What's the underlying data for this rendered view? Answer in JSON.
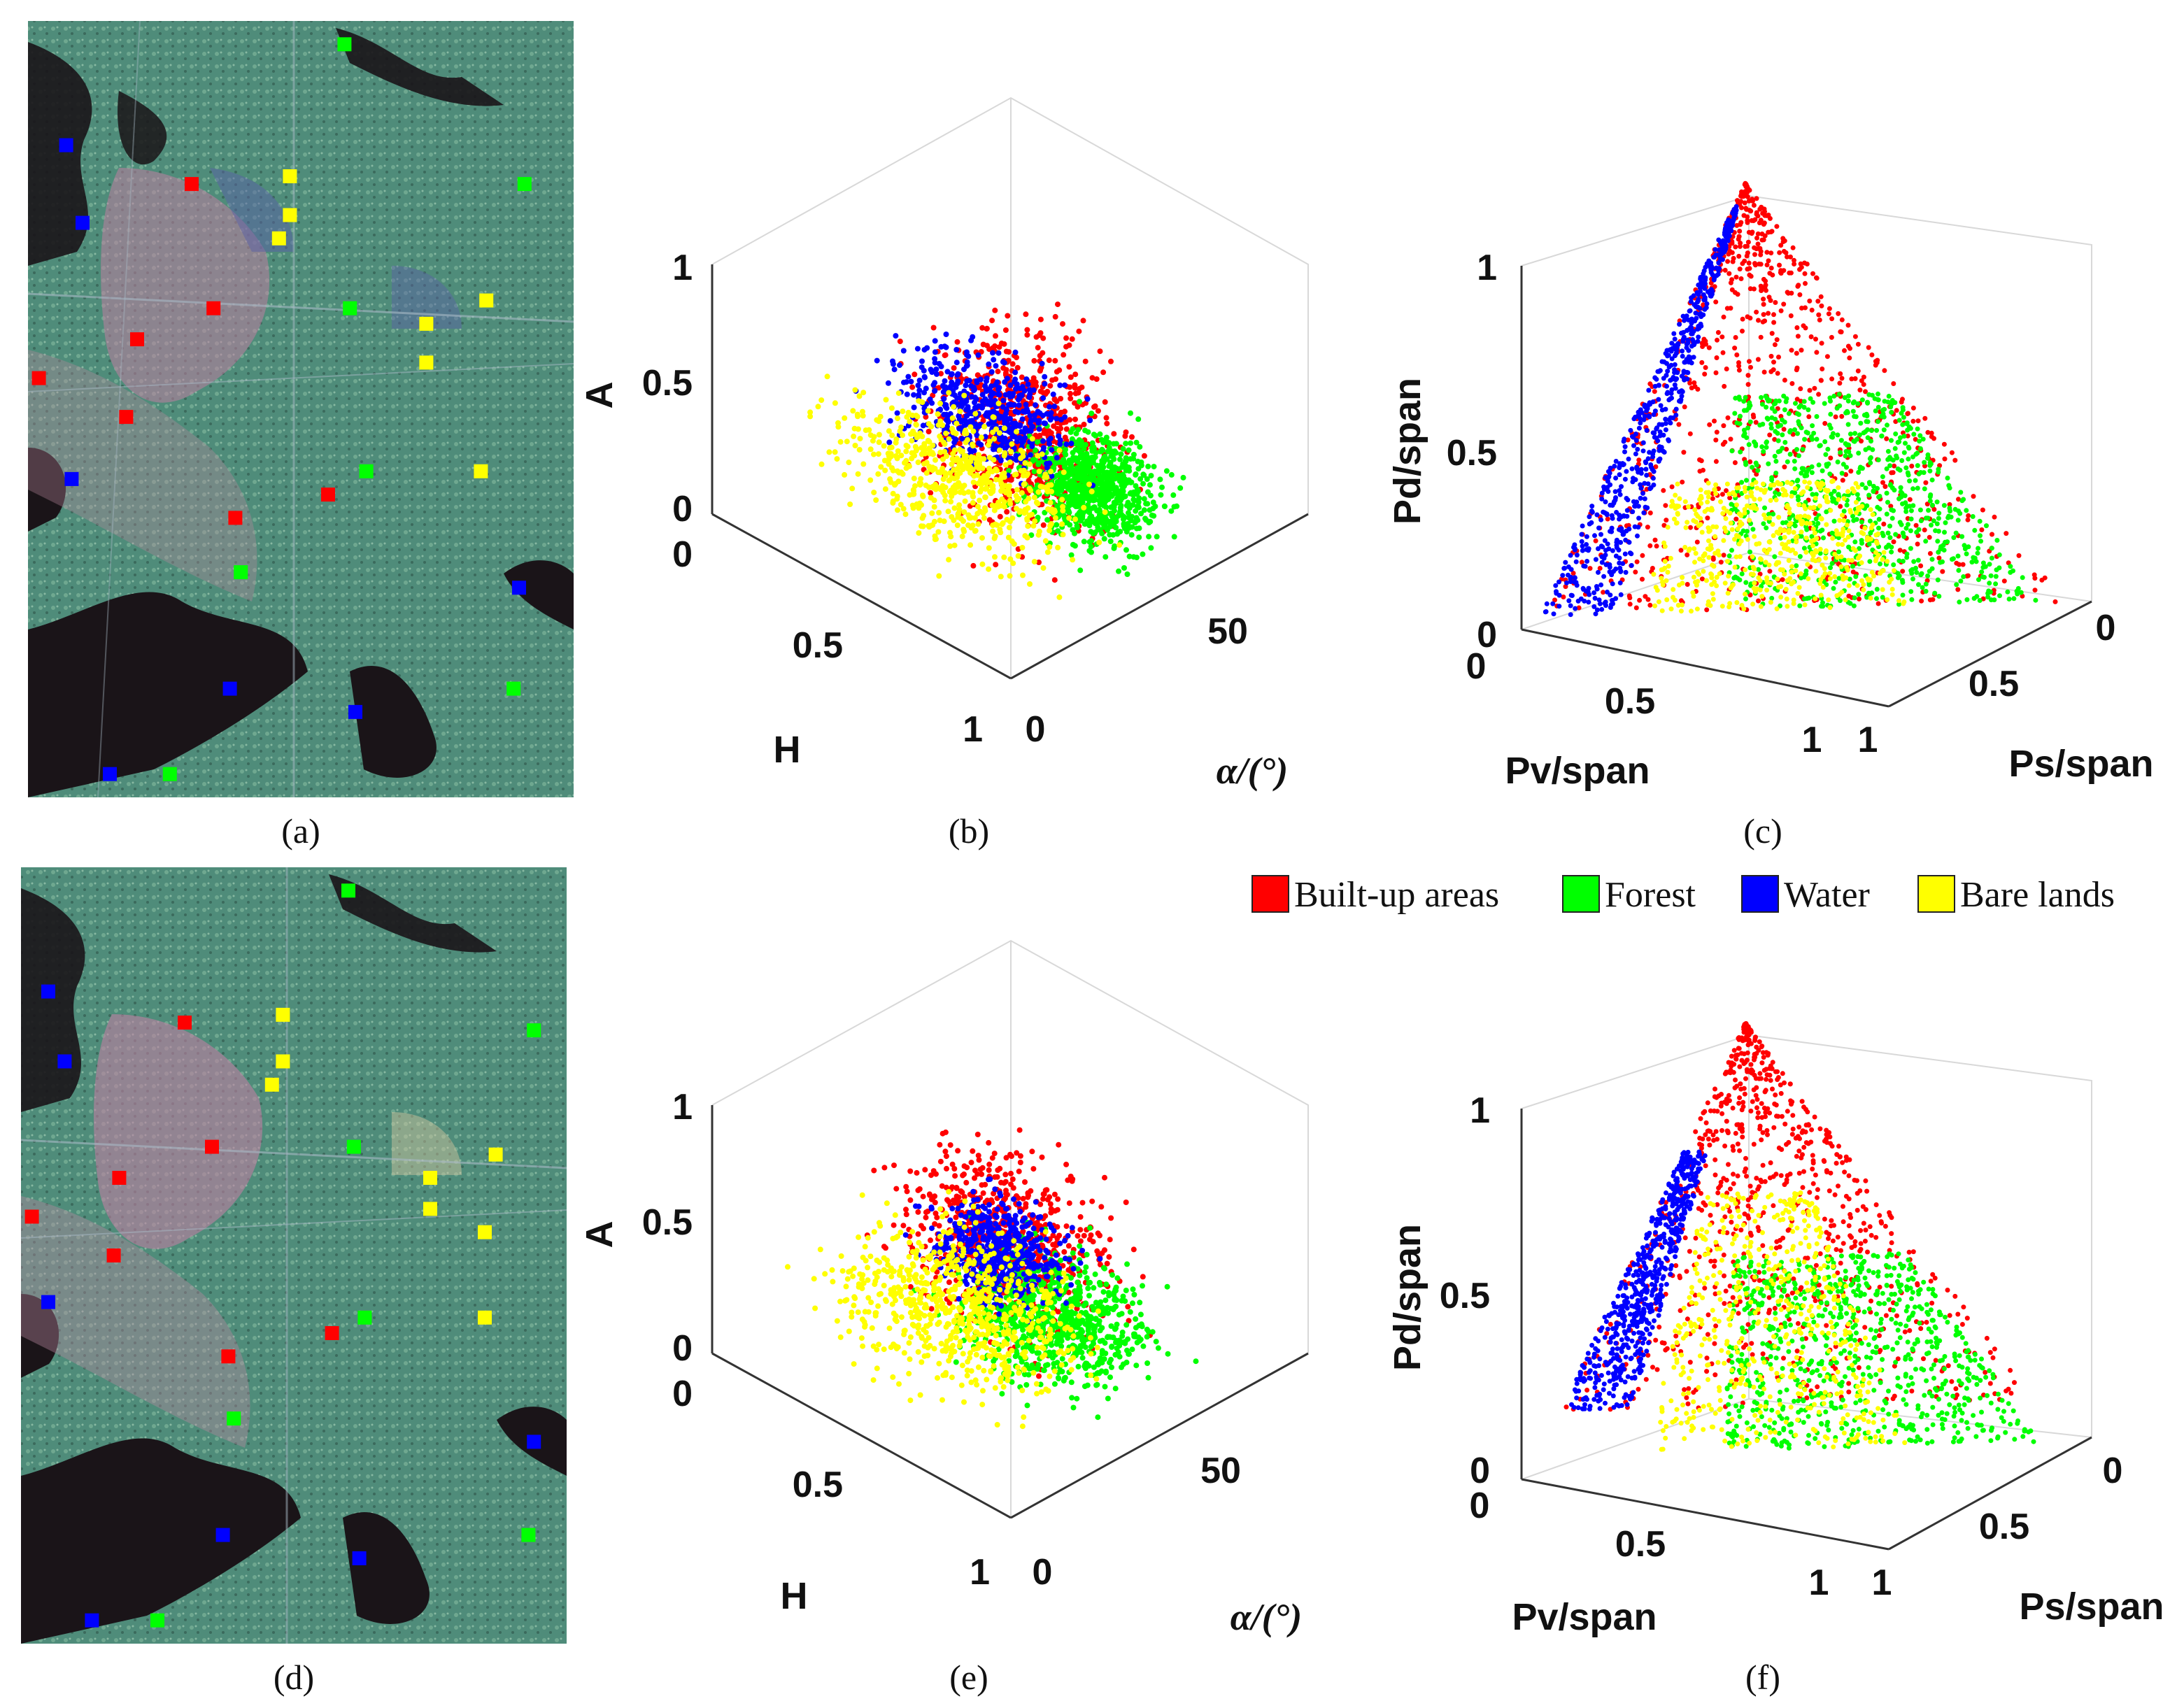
{
  "figure": {
    "panels": [
      {
        "id": "a",
        "label": "(a)",
        "kind": "image"
      },
      {
        "id": "b",
        "label": "(b)",
        "kind": "h-a-alpha"
      },
      {
        "id": "c",
        "label": "(c)",
        "kind": "pd-pv-ps"
      },
      {
        "id": "d",
        "label": "(d)",
        "kind": "image"
      },
      {
        "id": "e",
        "label": "(e)",
        "kind": "h-a-alpha"
      },
      {
        "id": "f",
        "label": "(f)",
        "kind": "pd-pv-ps"
      }
    ]
  },
  "legend": {
    "items": [
      {
        "label": "Built-up areas",
        "color": "#ff0000"
      },
      {
        "label": "Forest",
        "color": "#00ff00"
      },
      {
        "label": "Water",
        "color": "#0000ff"
      },
      {
        "label": "Bare lands",
        "color": "#ffff00"
      }
    ]
  },
  "chart_data": [
    {
      "panel": "b",
      "type": "scatter",
      "dims": 3,
      "axes": {
        "x": {
          "label": "H",
          "range": [
            0,
            1
          ],
          "ticks": [
            "0",
            "0.5",
            "1"
          ]
        },
        "y": {
          "label": "α/(°)",
          "range": [
            0,
            90
          ],
          "ticks": [
            "0",
            "50"
          ]
        },
        "z": {
          "label": "A",
          "range": [
            0,
            1
          ],
          "ticks": [
            "0",
            "0.5",
            "1"
          ]
        }
      },
      "series": [
        {
          "name": "Built-up areas",
          "color": "#ff0000",
          "H_range": [
            0.3,
            1.0
          ],
          "alpha_range": [
            10,
            60
          ],
          "A_range": [
            0.0,
            1.0
          ],
          "points": 700
        },
        {
          "name": "Forest",
          "color": "#00ff00",
          "H_range": [
            0.5,
            1.0
          ],
          "alpha_range": [
            30,
            65
          ],
          "A_range": [
            0.0,
            0.5
          ],
          "points": 800
        },
        {
          "name": "Water",
          "color": "#0000ff",
          "H_range": [
            0.2,
            0.9
          ],
          "alpha_range": [
            15,
            50
          ],
          "A_range": [
            0.3,
            0.8
          ],
          "points": 500
        },
        {
          "name": "Bare lands",
          "color": "#ffff00",
          "H_range": [
            0.0,
            1.0
          ],
          "alpha_range": [
            5,
            55
          ],
          "A_range": [
            0.0,
            0.5
          ],
          "points": 600
        }
      ]
    },
    {
      "panel": "c",
      "type": "scatter",
      "dims": 3,
      "axes": {
        "x": {
          "label": "Pv/span",
          "range": [
            0,
            1
          ],
          "ticks": [
            "0",
            "0.5",
            "1"
          ]
        },
        "y": {
          "label": "Ps/span",
          "range": [
            0,
            1
          ],
          "ticks": [
            "0",
            "0.5",
            "1"
          ]
        },
        "z": {
          "label": "Pd/span",
          "range": [
            0,
            1
          ],
          "ticks": [
            "0",
            "0.5",
            "1"
          ]
        }
      },
      "series": [
        {
          "name": "Built-up areas",
          "color": "#ff0000",
          "Pd_range": [
            0.0,
            1.0
          ],
          "points": 800
        },
        {
          "name": "Forest",
          "color": "#00ff00",
          "Pd_range": [
            0.0,
            0.5
          ],
          "points": 800
        },
        {
          "name": "Water",
          "color": "#0000ff",
          "Pd_range": [
            0.0,
            0.95
          ],
          "points": 600
        },
        {
          "name": "Bare lands",
          "color": "#ffff00",
          "Pd_range": [
            0.0,
            0.3
          ],
          "points": 500
        }
      ]
    },
    {
      "panel": "e",
      "type": "scatter",
      "dims": 3,
      "axes": {
        "x": {
          "label": "H",
          "range": [
            0,
            1
          ],
          "ticks": [
            "0",
            "0.5",
            "1"
          ]
        },
        "y": {
          "label": "α/(°)",
          "range": [
            0,
            90
          ],
          "ticks": [
            "0",
            "50"
          ]
        },
        "z": {
          "label": "A",
          "range": [
            0,
            1
          ],
          "ticks": [
            "0",
            "0.5",
            "1"
          ]
        }
      },
      "series": [
        {
          "name": "Built-up areas",
          "color": "#ff0000",
          "H_range": [
            0.2,
            1.0
          ],
          "alpha_range": [
            10,
            60
          ],
          "A_range": [
            0.2,
            1.0
          ],
          "points": 700
        },
        {
          "name": "Forest",
          "color": "#00ff00",
          "H_range": [
            0.3,
            1.0
          ],
          "alpha_range": [
            20,
            70
          ],
          "A_range": [
            0.0,
            0.5
          ],
          "points": 800
        },
        {
          "name": "Water",
          "color": "#0000ff",
          "H_range": [
            0.3,
            0.8
          ],
          "alpha_range": [
            20,
            55
          ],
          "A_range": [
            0.3,
            0.7
          ],
          "points": 500
        },
        {
          "name": "Bare lands",
          "color": "#ffff00",
          "H_range": [
            0.0,
            1.0
          ],
          "alpha_range": [
            0,
            60
          ],
          "A_range": [
            0.0,
            0.6
          ],
          "points": 700
        }
      ]
    },
    {
      "panel": "f",
      "type": "scatter",
      "dims": 3,
      "axes": {
        "x": {
          "label": "Pv/span",
          "range": [
            0,
            1
          ],
          "ticks": [
            "0",
            "0.5",
            "1"
          ]
        },
        "y": {
          "label": "Ps/span",
          "range": [
            0,
            1
          ],
          "ticks": [
            "0",
            "0.5",
            "1"
          ]
        },
        "z": {
          "label": "Pd/span",
          "range": [
            0,
            1
          ],
          "ticks": [
            "0",
            "0.5",
            "1"
          ]
        }
      },
      "series": [
        {
          "name": "Built-up areas",
          "color": "#ff0000",
          "Pd_range": [
            0.1,
            1.0
          ],
          "points": 800
        },
        {
          "name": "Forest",
          "color": "#00ff00",
          "Pd_range": [
            0.0,
            0.45
          ],
          "points": 800
        },
        {
          "name": "Water",
          "color": "#0000ff",
          "Pd_range": [
            0.1,
            0.7
          ],
          "points": 600
        },
        {
          "name": "Bare lands",
          "color": "#ffff00",
          "Pd_range": [
            0.0,
            0.6
          ],
          "points": 500
        }
      ]
    }
  ],
  "images": [
    {
      "panel": "a",
      "samples": [
        {
          "cls": "Water",
          "u": 0.07,
          "v": 0.16
        },
        {
          "cls": "Water",
          "u": 0.1,
          "v": 0.26
        },
        {
          "cls": "Water",
          "u": 0.08,
          "v": 0.59
        },
        {
          "cls": "Water",
          "u": 0.37,
          "v": 0.86
        },
        {
          "cls": "Water",
          "u": 0.6,
          "v": 0.89
        },
        {
          "cls": "Water",
          "u": 0.15,
          "v": 0.97
        },
        {
          "cls": "Water",
          "u": 0.9,
          "v": 0.73
        },
        {
          "cls": "Built-up areas",
          "u": 0.3,
          "v": 0.21
        },
        {
          "cls": "Built-up areas",
          "u": 0.34,
          "v": 0.37
        },
        {
          "cls": "Built-up areas",
          "u": 0.2,
          "v": 0.41
        },
        {
          "cls": "Built-up areas",
          "u": 0.02,
          "v": 0.46
        },
        {
          "cls": "Built-up areas",
          "u": 0.18,
          "v": 0.51
        },
        {
          "cls": "Built-up areas",
          "u": 0.55,
          "v": 0.61
        },
        {
          "cls": "Built-up areas",
          "u": 0.38,
          "v": 0.64
        },
        {
          "cls": "Forest",
          "u": 0.58,
          "v": 0.03
        },
        {
          "cls": "Forest",
          "u": 0.91,
          "v": 0.21
        },
        {
          "cls": "Forest",
          "u": 0.59,
          "v": 0.37
        },
        {
          "cls": "Forest",
          "u": 0.62,
          "v": 0.58
        },
        {
          "cls": "Forest",
          "u": 0.39,
          "v": 0.71
        },
        {
          "cls": "Forest",
          "u": 0.89,
          "v": 0.86
        },
        {
          "cls": "Forest",
          "u": 0.26,
          "v": 0.97
        },
        {
          "cls": "Bare lands",
          "u": 0.48,
          "v": 0.2
        },
        {
          "cls": "Bare lands",
          "u": 0.48,
          "v": 0.25
        },
        {
          "cls": "Bare lands",
          "u": 0.46,
          "v": 0.28
        },
        {
          "cls": "Bare lands",
          "u": 0.84,
          "v": 0.36
        },
        {
          "cls": "Bare lands",
          "u": 0.73,
          "v": 0.39
        },
        {
          "cls": "Bare lands",
          "u": 0.73,
          "v": 0.44
        },
        {
          "cls": "Bare lands",
          "u": 0.83,
          "v": 0.58
        }
      ]
    },
    {
      "panel": "d",
      "samples": [
        {
          "cls": "Water",
          "u": 0.05,
          "v": 0.16
        },
        {
          "cls": "Water",
          "u": 0.08,
          "v": 0.25
        },
        {
          "cls": "Water",
          "u": 0.05,
          "v": 0.56
        },
        {
          "cls": "Water",
          "u": 0.37,
          "v": 0.86
        },
        {
          "cls": "Water",
          "u": 0.62,
          "v": 0.89
        },
        {
          "cls": "Water",
          "u": 0.13,
          "v": 0.97
        },
        {
          "cls": "Water",
          "u": 0.94,
          "v": 0.74
        },
        {
          "cls": "Built-up areas",
          "u": 0.3,
          "v": 0.2
        },
        {
          "cls": "Built-up areas",
          "u": 0.35,
          "v": 0.36
        },
        {
          "cls": "Built-up areas",
          "u": 0.18,
          "v": 0.4
        },
        {
          "cls": "Built-up areas",
          "u": 0.02,
          "v": 0.45
        },
        {
          "cls": "Built-up areas",
          "u": 0.17,
          "v": 0.5
        },
        {
          "cls": "Built-up areas",
          "u": 0.57,
          "v": 0.6
        },
        {
          "cls": "Built-up areas",
          "u": 0.38,
          "v": 0.63
        },
        {
          "cls": "Forest",
          "u": 0.6,
          "v": 0.03
        },
        {
          "cls": "Forest",
          "u": 0.94,
          "v": 0.21
        },
        {
          "cls": "Forest",
          "u": 0.61,
          "v": 0.36
        },
        {
          "cls": "Forest",
          "u": 0.63,
          "v": 0.58
        },
        {
          "cls": "Forest",
          "u": 0.39,
          "v": 0.71
        },
        {
          "cls": "Forest",
          "u": 0.93,
          "v": 0.86
        },
        {
          "cls": "Forest",
          "u": 0.25,
          "v": 0.97
        },
        {
          "cls": "Bare lands",
          "u": 0.48,
          "v": 0.19
        },
        {
          "cls": "Bare lands",
          "u": 0.48,
          "v": 0.25
        },
        {
          "cls": "Bare lands",
          "u": 0.46,
          "v": 0.28
        },
        {
          "cls": "Bare lands",
          "u": 0.87,
          "v": 0.37
        },
        {
          "cls": "Bare lands",
          "u": 0.75,
          "v": 0.4
        },
        {
          "cls": "Bare lands",
          "u": 0.75,
          "v": 0.44
        },
        {
          "cls": "Bare lands",
          "u": 0.85,
          "v": 0.47
        },
        {
          "cls": "Bare lands",
          "u": 0.85,
          "v": 0.58
        }
      ]
    }
  ]
}
